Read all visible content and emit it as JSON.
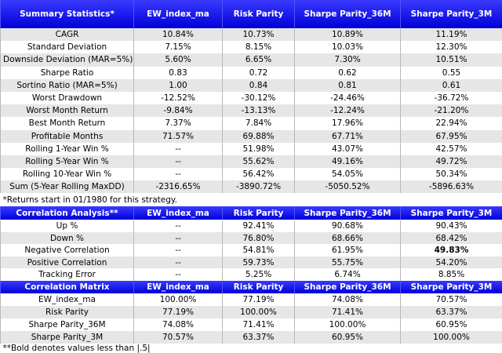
{
  "sections": [
    {
      "header": [
        "Summary Statistics*",
        "EW_index_ma",
        "Risk Parity",
        "Sharpe Parity_36M",
        "Sharpe Parity_3M"
      ],
      "rows": [
        [
          "CAGR",
          "10.84%",
          "10.73%",
          "10.89%",
          "11.19%"
        ],
        [
          "Standard Deviation",
          "7.15%",
          "8.15%",
          "10.03%",
          "12.30%"
        ],
        [
          "Downside Deviation (MAR=5%)",
          "5.60%",
          "6.65%",
          "7.30%",
          "10.51%"
        ],
        [
          "Sharpe Ratio",
          "0.83",
          "0.72",
          "0.62",
          "0.55"
        ],
        [
          "Sortino Ratio (MAR=5%)",
          "1.00",
          "0.84",
          "0.81",
          "0.61"
        ],
        [
          "Worst Drawdown",
          "-12.52%",
          "-30.12%",
          "-24.46%",
          "-36.72%"
        ],
        [
          "Worst Month Return",
          "-9.84%",
          "-13.13%",
          "-12.24%",
          "-21.20%"
        ],
        [
          "Best Month Return",
          "7.37%",
          "7.84%",
          "17.96%",
          "22.94%"
        ],
        [
          "Profitable Months",
          "71.57%",
          "69.88%",
          "67.71%",
          "67.95%"
        ],
        [
          "Rolling 1-Year Win %",
          "--",
          "51.98%",
          "43.07%",
          "42.57%"
        ],
        [
          "Rolling 5-Year Win %",
          "--",
          "55.62%",
          "49.16%",
          "49.72%"
        ],
        [
          "Rolling 10-Year Win %",
          "--",
          "56.42%",
          "54.05%",
          "50.34%"
        ],
        [
          "Sum (5-Year Rolling MaxDD)",
          "-2316.65%",
          "-3890.72%",
          "-5050.52%",
          "-5896.63%"
        ]
      ],
      "note": "*Returns start in 01/1980 for this strategy."
    },
    {
      "header": [
        "Correlation Analysis**",
        "EW_index_ma",
        "Risk Parity",
        "Sharpe Parity_36M",
        "Sharpe Parity_3M"
      ],
      "rows": [
        [
          "Up %",
          "--",
          "92.41%",
          "90.68%",
          "90.43%"
        ],
        [
          "Down %",
          "--",
          "76.80%",
          "68.66%",
          "68.42%"
        ],
        [
          "Negative Correlation",
          "--",
          "54.81%",
          "61.95%",
          "49.83%"
        ],
        [
          "Positive Correlation",
          "--",
          "59.73%",
          "55.75%",
          "54.20%"
        ],
        [
          "Tracking Error",
          "--",
          "5.25%",
          "6.74%",
          "8.85%"
        ]
      ],
      "bold_cells": [
        [
          2,
          4
        ]
      ]
    },
    {
      "header": [
        "Correlation Matrix",
        "EW_index_ma",
        "Risk Parity",
        "Sharpe Parity_36M",
        "Sharpe Parity_3M"
      ],
      "rows": [
        [
          "EW_index_ma",
          "100.00%",
          "77.19%",
          "74.08%",
          "70.57%"
        ],
        [
          "Risk Parity",
          "77.19%",
          "100.00%",
          "71.41%",
          "63.37%"
        ],
        [
          "Sharpe Parity_36M",
          "74.08%",
          "71.41%",
          "100.00%",
          "60.95%"
        ],
        [
          "Sharpe Parity_3M",
          "70.57%",
          "63.37%",
          "60.95%",
          "100.00%"
        ]
      ],
      "note": "**Bold denotes values less than |.5|"
    }
  ]
}
